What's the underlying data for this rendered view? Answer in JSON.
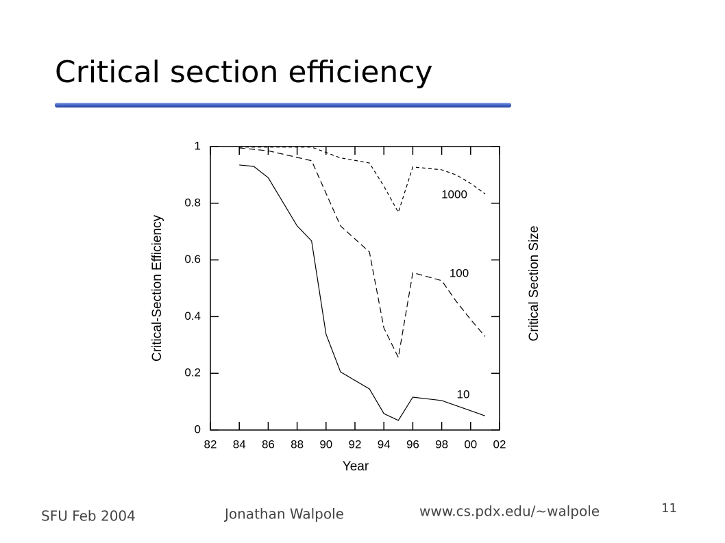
{
  "title": "Critical section efficiency",
  "footer": {
    "left": "SFU Feb 2004",
    "author": "Jonathan Walpole",
    "url": "www.cs.pdx.edu/~walpole",
    "page": "11"
  },
  "chart_data": {
    "type": "line",
    "xlabel": "Year",
    "ylabel": "Critical-Section Efficiency",
    "y2label": "Critical Section Size",
    "xlim": [
      1982,
      2002
    ],
    "ylim": [
      0,
      1
    ],
    "xticks": [
      {
        "value": 1982,
        "label": "82"
      },
      {
        "value": 1984,
        "label": "84"
      },
      {
        "value": 1986,
        "label": "86"
      },
      {
        "value": 1988,
        "label": "88"
      },
      {
        "value": 1990,
        "label": "90"
      },
      {
        "value": 1992,
        "label": "92"
      },
      {
        "value": 1994,
        "label": "94"
      },
      {
        "value": 1996,
        "label": "96"
      },
      {
        "value": 1998,
        "label": "98"
      },
      {
        "value": 2000,
        "label": "00"
      },
      {
        "value": 2002,
        "label": "02"
      }
    ],
    "yticks": [
      0,
      0.2,
      0.4,
      0.6,
      0.8,
      1
    ],
    "series": [
      {
        "name": "10",
        "color": "#000000",
        "line_style": "solid",
        "x": [
          1984,
          1985,
          1986,
          1988,
          1989,
          1990,
          1991,
          1993,
          1994,
          1995,
          1996,
          1998,
          2000,
          2001
        ],
        "values": [
          0.935,
          0.93,
          0.89,
          0.72,
          0.667,
          0.338,
          0.205,
          0.145,
          0.058,
          0.034,
          0.116,
          0.104,
          0.068,
          0.05
        ]
      },
      {
        "name": "100",
        "color": "#000000",
        "line_style": "dashed",
        "x": [
          1984,
          1986,
          1989,
          1991,
          1993,
          1994,
          1995,
          1996,
          1998,
          1999,
          2000,
          2001
        ],
        "values": [
          0.995,
          0.985,
          0.95,
          0.72,
          0.628,
          0.36,
          0.256,
          0.555,
          0.527,
          0.454,
          0.39,
          0.33
        ]
      },
      {
        "name": "1000",
        "color": "#000000",
        "line_style": "short-dashed",
        "x": [
          1984,
          1986,
          1989,
          1991,
          1993,
          1994,
          1995,
          1996,
          1998,
          1999,
          2000,
          2001
        ],
        "values": [
          0.998,
          0.998,
          0.998,
          0.96,
          0.942,
          0.86,
          0.768,
          0.928,
          0.918,
          0.9,
          0.87,
          0.833
        ]
      }
    ]
  }
}
